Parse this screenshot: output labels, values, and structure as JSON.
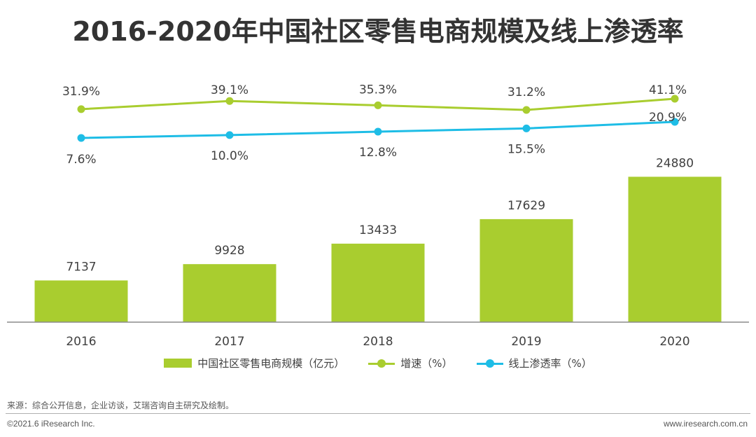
{
  "title": "2016-2020年中国社区零售电商规模及线上渗透率",
  "chart_data": {
    "type": "bar",
    "categories": [
      "2016",
      "2017",
      "2018",
      "2019",
      "2020"
    ],
    "series": [
      {
        "name": "中国社区零售电商规模（亿元）",
        "type": "bar",
        "values": [
          7137,
          9928,
          13433,
          17629,
          24880
        ],
        "labels": [
          "7137",
          "9928",
          "13433",
          "17629",
          "24880"
        ],
        "color": "#A9CD2F"
      },
      {
        "name": "增速（%）",
        "type": "line",
        "values": [
          31.9,
          39.1,
          35.3,
          31.2,
          41.1
        ],
        "labels": [
          "31.9%",
          "39.1%",
          "35.3%",
          "31.2%",
          "41.1%"
        ],
        "color": "#A9CD2F"
      },
      {
        "name": "线上渗透率（%）",
        "type": "line",
        "values": [
          7.6,
          10.0,
          12.8,
          15.5,
          20.9
        ],
        "labels": [
          "7.6%",
          "10.0%",
          "12.8%",
          "15.5%",
          "20.9%"
        ],
        "color": "#1EBDE6"
      }
    ],
    "ylim_bar": [
      0,
      30000
    ]
  },
  "legend": {
    "bar_label": "中国社区零售电商规模（亿元）",
    "growth_label": "增速（%）",
    "penetration_label": "线上渗透率（%）"
  },
  "footer": {
    "source": "来源：综合公开信息，企业访谈，艾瑞咨询自主研究及绘制。",
    "copyright": "©2021.6 iResearch Inc.",
    "website": "www.iresearch.com.cn"
  },
  "colors": {
    "bar": "#A9CD2F",
    "growth": "#A9CD2F",
    "penetration": "#1EBDE6"
  }
}
